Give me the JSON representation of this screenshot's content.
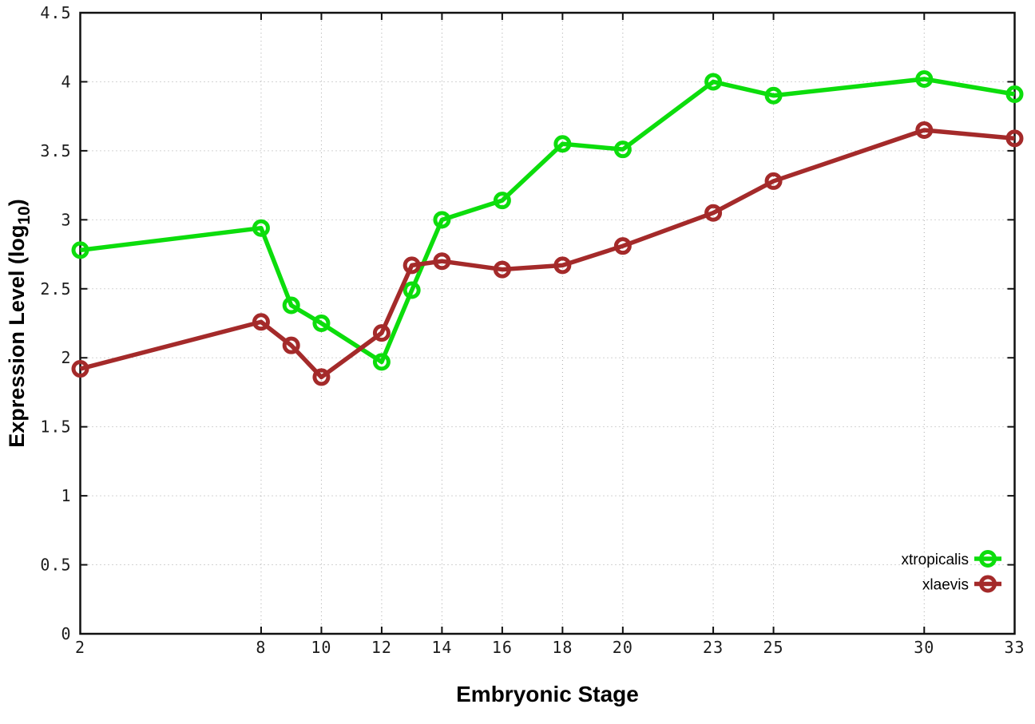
{
  "figure": {
    "background": "#ffffff"
  },
  "chart_data": {
    "type": "line",
    "title": "",
    "xlabel": "Embryonic Stage",
    "ylabel": "Expression Level (log10)",
    "ylabel_parts": {
      "prefix": "Expression Level (log",
      "sub": "10",
      "suffix": ")"
    },
    "xlim": [
      2,
      33
    ],
    "ylim": [
      0,
      4.5
    ],
    "grid": true,
    "grid_style": "dotted",
    "legend_position": "bottom-right-inside",
    "x_ticks": [
      2,
      8,
      10,
      12,
      14,
      16,
      18,
      20,
      23,
      25,
      30,
      33
    ],
    "x_tick_labels": [
      "2",
      "8",
      "10",
      "12",
      "14",
      "16",
      "18",
      "20",
      "23",
      "25",
      "30",
      "33"
    ],
    "y_ticks": [
      0,
      0.5,
      1,
      1.5,
      2,
      2.5,
      3,
      3.5,
      4,
      4.5
    ],
    "y_tick_labels": [
      "0",
      "0.5",
      "1",
      "1.5",
      "2",
      "2.5",
      "3",
      "3.5",
      "4",
      "4.5"
    ],
    "x": [
      2,
      8,
      9,
      10,
      12,
      13,
      14,
      16,
      18,
      20,
      23,
      25,
      30,
      33
    ],
    "series": [
      {
        "name": "xtropicalis",
        "color": "#0cdd0c",
        "marker": "open-circle",
        "values": [
          2.78,
          2.94,
          2.38,
          2.25,
          1.97,
          2.49,
          3.0,
          3.14,
          3.55,
          3.51,
          4.0,
          3.9,
          4.02,
          3.91
        ]
      },
      {
        "name": "xlaevis",
        "color": "#a42a2a",
        "marker": "open-circle",
        "values": [
          1.92,
          2.26,
          2.09,
          1.86,
          2.18,
          2.67,
          2.7,
          2.64,
          2.67,
          2.81,
          3.05,
          3.28,
          3.65,
          3.59
        ]
      }
    ],
    "colors": {
      "axis": "#111111",
      "grid": "#a8a8a8",
      "tick_label": "#1c1c1c"
    }
  }
}
